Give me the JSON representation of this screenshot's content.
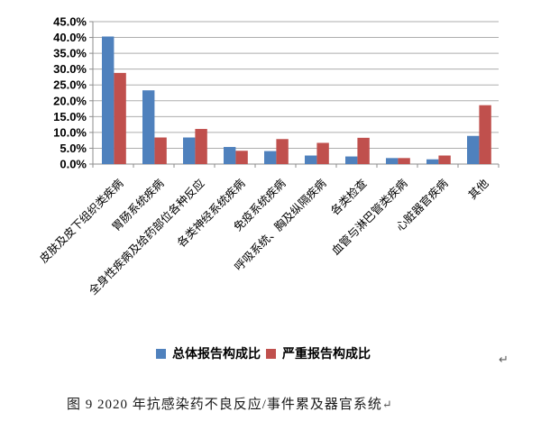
{
  "figure": {
    "caption": "图 9  2020 年抗感染药不良反应/事件累及器官系统",
    "return_mark": "↵"
  },
  "chart_data": {
    "type": "bar",
    "title": "",
    "xlabel": "",
    "ylabel": "",
    "categories": [
      "皮肤及皮下组织类疾病",
      "胃肠系统疾病",
      "全身性疾病及给药部位各种反应",
      "各类神经系统疾病",
      "免疫系统疾病",
      "呼吸系统、胸及纵隔疾病",
      "各类检查",
      "血管与淋巴管类疾病",
      "心脏器官疾病",
      "其他"
    ],
    "series": [
      {
        "name": "总体报告构成比",
        "color": "#4F81BD",
        "values": [
          40.3,
          23.3,
          8.4,
          5.4,
          4.1,
          2.7,
          2.4,
          1.9,
          1.5,
          8.9
        ]
      },
      {
        "name": "严重报告构成比",
        "color": "#C0504D",
        "values": [
          28.8,
          8.4,
          11.1,
          4.2,
          7.9,
          6.7,
          8.3,
          1.9,
          2.7,
          18.6
        ]
      }
    ],
    "ylim": [
      0,
      45
    ],
    "ytick_step": 5,
    "ytick_labels": [
      "0.0%",
      "5.0%",
      "10.0%",
      "15.0%",
      "20.0%",
      "25.0%",
      "30.0%",
      "35.0%",
      "40.0%",
      "45.0%"
    ],
    "grid": "horizontal",
    "legend_position": "bottom"
  },
  "style_colors": {
    "gridline": "#ADADAD",
    "axis": "#8C8C8C",
    "tick_text": "#000000",
    "return_mark": "#5a5a5a"
  }
}
